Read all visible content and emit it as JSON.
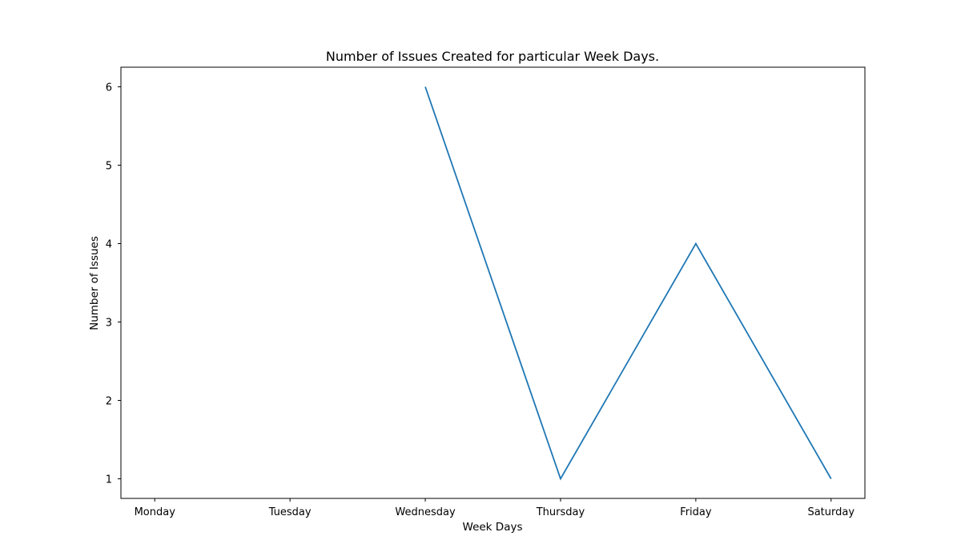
{
  "chart_data": {
    "type": "line",
    "title": "Number of Issues Created for particular Week Days.",
    "xlabel": "Week Days",
    "ylabel": "Number of Issues",
    "categories": [
      "Monday",
      "Tuesday",
      "Wednesday",
      "Thursday",
      "Friday",
      "Saturday"
    ],
    "series": [
      {
        "values": [
          null,
          null,
          6,
          1,
          4,
          1
        ]
      }
    ],
    "yticks": [
      1,
      2,
      3,
      4,
      5,
      6
    ],
    "ylim": [
      0.75,
      6.25
    ],
    "grid": false,
    "colors": {
      "line": "#1f77b4",
      "axis": "#000000",
      "text": "#000000",
      "background": "#ffffff"
    }
  }
}
